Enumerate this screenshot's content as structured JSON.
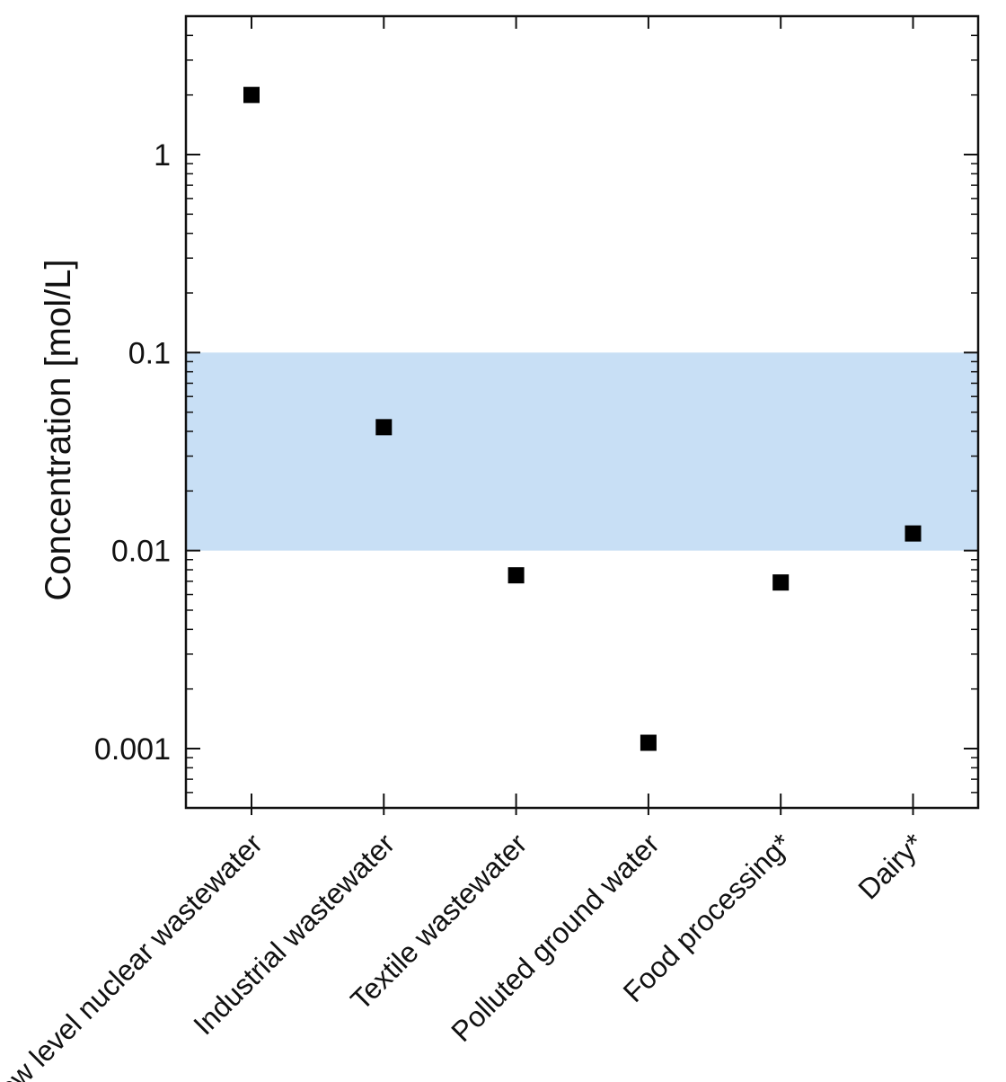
{
  "chart_data": {
    "type": "scatter",
    "title": "",
    "xlabel": "",
    "ylabel": "Concentration [mol/L]",
    "y_scale": "log",
    "ylim": [
      0.0005,
      10
    ],
    "yticks": [
      0.001,
      0.01,
      0.1,
      1
    ],
    "ytick_labels": [
      "0.001",
      "0.01",
      "0.1",
      "1"
    ],
    "categories": [
      "Low level nuclear wastewater",
      "Industrial wastewater",
      "Textile wastewater",
      "Polluted ground water",
      "Food processing*",
      "Dairy*"
    ],
    "values": [
      2.0,
      0.042,
      0.0075,
      0.00107,
      0.0069,
      0.0122
    ],
    "shaded_band": {
      "y_from": 0.01,
      "y_to": 0.1,
      "color": "#c8dff5"
    },
    "marker": {
      "shape": "square",
      "color": "#000000"
    },
    "grid": false,
    "legend": "none"
  }
}
